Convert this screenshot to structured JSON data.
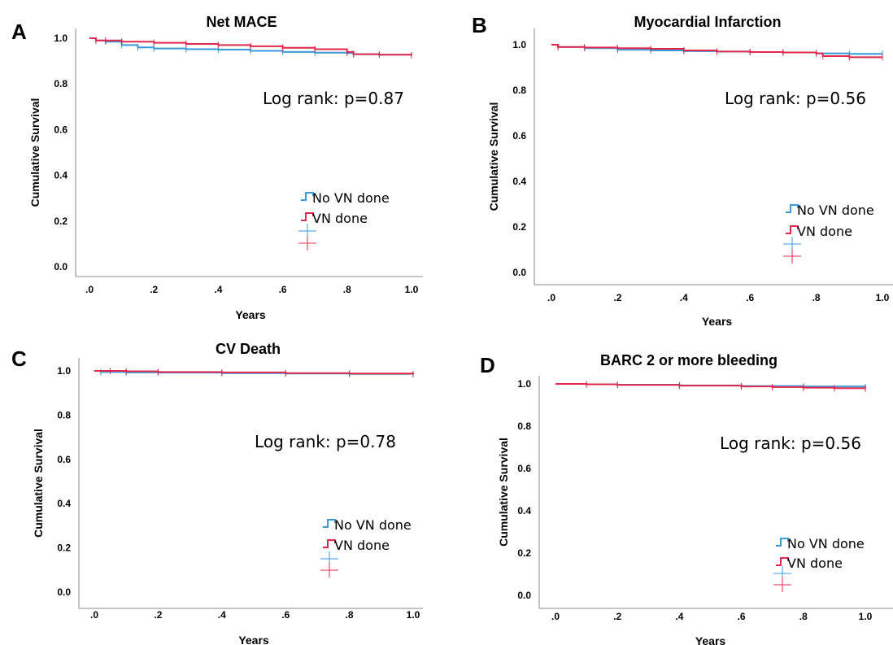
{
  "chart_data": [
    {
      "panel": "A",
      "type": "line",
      "title": "Net MACE",
      "xlabel": "Years",
      "ylabel": "Cumulative Survival",
      "xlim": [
        0,
        1.0
      ],
      "ylim": [
        0,
        1.0
      ],
      "xticks": [
        ".0",
        ".2",
        ".4",
        ".6",
        ".8",
        "1.0"
      ],
      "yticks": [
        "0.0",
        "0.2",
        "0.4",
        "0.6",
        "0.8",
        "1.0"
      ],
      "annotation": "Log rank: p=0.87",
      "legend": [
        "No VN done",
        "VN done"
      ],
      "series": [
        {
          "name": "No VN done",
          "color": "#3a9ad9",
          "x": [
            0,
            0.02,
            0.05,
            0.1,
            0.15,
            0.2,
            0.3,
            0.4,
            0.5,
            0.6,
            0.7,
            0.8,
            0.82,
            0.9,
            1.0
          ],
          "y": [
            1.0,
            0.99,
            0.985,
            0.97,
            0.96,
            0.955,
            0.952,
            0.95,
            0.945,
            0.94,
            0.937,
            0.935,
            0.93,
            0.928,
            0.925
          ]
        },
        {
          "name": "VN done",
          "color": "#e3284e",
          "x": [
            0,
            0.02,
            0.05,
            0.1,
            0.2,
            0.3,
            0.4,
            0.5,
            0.6,
            0.7,
            0.8,
            0.82,
            0.9,
            1.0
          ],
          "y": [
            1.0,
            0.99,
            0.99,
            0.985,
            0.98,
            0.975,
            0.97,
            0.965,
            0.958,
            0.952,
            0.94,
            0.93,
            0.928,
            0.925
          ]
        }
      ]
    },
    {
      "panel": "B",
      "type": "line",
      "title": "Myocardial Infarction",
      "xlabel": "Years",
      "ylabel": "Cumulative Survival",
      "xlim": [
        0,
        1.0
      ],
      "ylim": [
        0,
        1.0
      ],
      "xticks": [
        ".0",
        ".2",
        ".4",
        ".6",
        ".8",
        "1.0"
      ],
      "yticks": [
        "0.0",
        "0.2",
        "0.4",
        "0.6",
        "0.8",
        "1.0"
      ],
      "annotation": "Log rank: p=0.56",
      "legend": [
        "No VN done",
        "VN done"
      ],
      "series": [
        {
          "name": "No VN done",
          "color": "#3a9ad9",
          "x": [
            0,
            0.02,
            0.1,
            0.2,
            0.3,
            0.4,
            0.5,
            0.6,
            0.7,
            0.8,
            0.9,
            1.0
          ],
          "y": [
            1.0,
            0.99,
            0.985,
            0.978,
            0.975,
            0.972,
            0.97,
            0.968,
            0.966,
            0.962,
            0.96,
            0.96
          ]
        },
        {
          "name": "VN done",
          "color": "#e3284e",
          "x": [
            0,
            0.02,
            0.1,
            0.2,
            0.3,
            0.4,
            0.5,
            0.6,
            0.7,
            0.8,
            0.82,
            0.9,
            1.0
          ],
          "y": [
            1.0,
            0.99,
            0.988,
            0.985,
            0.982,
            0.975,
            0.97,
            0.968,
            0.966,
            0.962,
            0.95,
            0.945,
            0.945
          ]
        }
      ]
    },
    {
      "panel": "C",
      "type": "line",
      "title": "CV Death",
      "xlabel": "Years",
      "ylabel": "Cumulative Survival",
      "xlim": [
        0,
        1.0
      ],
      "ylim": [
        0,
        1.0
      ],
      "xticks": [
        ".0",
        ".2",
        ".4",
        ".6",
        ".8",
        "1.0"
      ],
      "yticks": [
        "0.0",
        "0.2",
        "0.4",
        "0.6",
        "0.8",
        "1.0"
      ],
      "annotation": "Log rank: p=0.78",
      "legend": [
        "No VN done",
        "VN done"
      ],
      "series": [
        {
          "name": "No VN done",
          "color": "#3a9ad9",
          "x": [
            0,
            0.02,
            0.1,
            0.2,
            0.4,
            0.6,
            0.8,
            1.0
          ],
          "y": [
            1.0,
            0.995,
            0.993,
            0.992,
            0.99,
            0.988,
            0.986,
            0.985
          ]
        },
        {
          "name": "VN done",
          "color": "#e3284e",
          "x": [
            0,
            0.05,
            0.1,
            0.2,
            0.4,
            0.6,
            0.8,
            1.0
          ],
          "y": [
            1.0,
            1.0,
            0.998,
            0.995,
            0.993,
            0.99,
            0.988,
            0.985
          ]
        }
      ]
    },
    {
      "panel": "D",
      "type": "line",
      "title": "BARC 2 or more bleeding",
      "xlabel": "Years",
      "ylabel": "Cumulative Survival",
      "xlim": [
        0,
        1.0
      ],
      "ylim": [
        0,
        1.0
      ],
      "xticks": [
        ".0",
        ".2",
        ".4",
        ".6",
        ".8",
        "1.0"
      ],
      "yticks": [
        "0.0",
        "0.2",
        "0.4",
        "0.6",
        "0.8",
        "1.0"
      ],
      "annotation": "Log rank: p=0.56",
      "legend": [
        "No VN done",
        "VN done"
      ],
      "series": [
        {
          "name": "No VN done",
          "color": "#3a9ad9",
          "x": [
            0,
            0.1,
            0.2,
            0.4,
            0.6,
            0.8,
            1.0
          ],
          "y": [
            1.0,
            0.998,
            0.996,
            0.993,
            0.99,
            0.988,
            0.985
          ]
        },
        {
          "name": "VN done",
          "color": "#e3284e",
          "x": [
            0,
            0.1,
            0.2,
            0.4,
            0.6,
            0.7,
            0.8,
            0.9,
            1.0
          ],
          "y": [
            1.0,
            0.998,
            0.995,
            0.992,
            0.988,
            0.985,
            0.982,
            0.98,
            0.978
          ]
        }
      ]
    }
  ]
}
